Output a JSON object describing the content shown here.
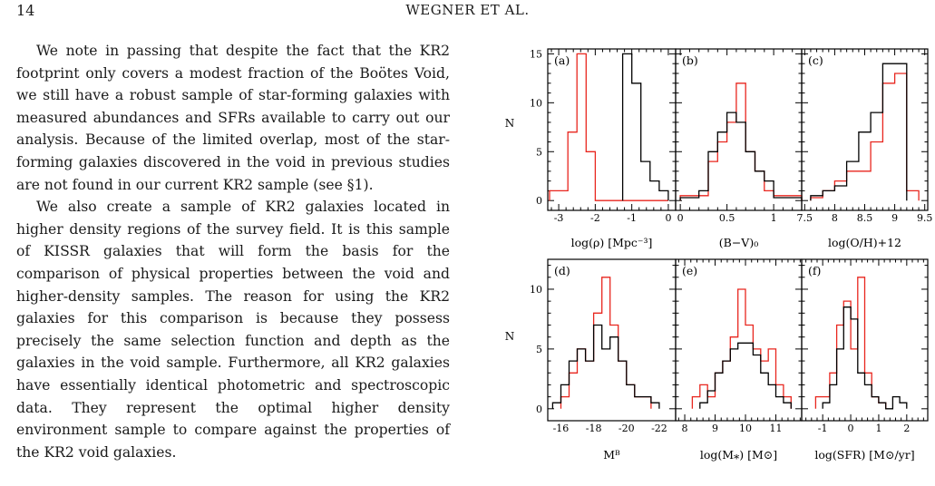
{
  "header": {
    "page_number": "14",
    "running_head": "WEGNER ET AL."
  },
  "body": {
    "paragraphs": [
      "We note in passing that despite the fact that the KR2 footprint only covers a modest fraction of the Boötes Void, we still have a robust sample of star-forming galaxies with measured abundances and SFRs available to carry out our analysis. Because of the limited overlap, most of the star-forming galaxies discovered in the void in previous studies are not found in our current KR2 sample (see §1).",
      "We also create a sample of KR2 galaxies located in higher density regions of the survey field. It is this sample of KISSR galaxies that will form the basis for the comparison of physical properties between the void and higher-density samples. The reason for using the KR2 galaxies for this comparison is because they possess precisely the same selection function and depth as the galaxies in the void sample. Furthermore, all KR2 galaxies have essentially identical photometric and spectroscopic data. They represent the optimal higher density environment sample to compare against the properties of the KR2 void galaxies."
    ]
  },
  "colors": {
    "void": "#e8261e",
    "higher_density": "#000000"
  },
  "chart_data": [
    {
      "type": "histogram",
      "panel": "(a)",
      "xlabel": "log(ρ) [Mpc⁻³]",
      "ylabel": "N",
      "xlim": [
        -3.3,
        0.2
      ],
      "ylim": [
        -1,
        15.5
      ],
      "xticks": [
        -3,
        -2,
        -1,
        0
      ],
      "xtick_labels": [
        "-3",
        "-2",
        "-1",
        "0"
      ],
      "yticks": [
        0,
        5,
        10,
        15
      ],
      "ytick_labels": [
        "0",
        "5",
        "10",
        "15"
      ],
      "series": [
        {
          "color": "red",
          "edges": [
            -3.25,
            -2.75,
            -2.5,
            -2.25,
            -2.0,
            -1.75,
            0.0
          ],
          "counts": [
            1,
            7,
            15,
            5,
            0,
            0
          ]
        },
        {
          "color": "black",
          "edges": [
            -1.25,
            -1.0,
            -0.75,
            -0.5,
            -0.25,
            0.0
          ],
          "counts": [
            15,
            12,
            4,
            2,
            1
          ]
        }
      ]
    },
    {
      "type": "histogram",
      "panel": "(b)",
      "xlabel": "(B−V)₀",
      "xlim": [
        -0.05,
        1.3
      ],
      "ylim": [
        -1,
        15.5
      ],
      "xticks": [
        0,
        0.5,
        1
      ],
      "xtick_labels": [
        "0",
        "0.5",
        "1"
      ],
      "series": [
        {
          "color": "red",
          "edges": [
            0.0,
            0.3,
            0.4,
            0.5,
            0.6,
            0.7,
            0.8,
            0.9,
            1.0,
            1.3
          ],
          "counts": [
            0.5,
            4,
            6,
            8,
            12,
            5,
            3,
            1,
            0.5
          ]
        },
        {
          "color": "black",
          "edges": [
            0.0,
            0.2,
            0.3,
            0.4,
            0.5,
            0.6,
            0.7,
            0.8,
            0.9,
            1.0,
            1.3
          ],
          "counts": [
            0.3,
            1,
            5,
            7,
            9,
            8,
            5,
            3,
            2,
            0.3
          ]
        }
      ]
    },
    {
      "type": "histogram",
      "panel": "(c)",
      "xlabel": "log(O/H)+12",
      "xlim": [
        7.45,
        9.55
      ],
      "ylim": [
        -1,
        15.5
      ],
      "xticks": [
        7.5,
        8,
        8.5,
        9,
        9.5
      ],
      "xtick_labels": [
        "7.5",
        "8",
        "8.5",
        "9",
        "9.5"
      ],
      "series": [
        {
          "color": "red",
          "edges": [
            7.6,
            7.8,
            8.0,
            8.2,
            8.4,
            8.6,
            8.8,
            9.0,
            9.2,
            9.4
          ],
          "counts": [
            0.3,
            1,
            2,
            3,
            3,
            6,
            12,
            13,
            1
          ]
        },
        {
          "color": "black",
          "edges": [
            7.6,
            7.8,
            8.0,
            8.2,
            8.4,
            8.6,
            8.8,
            9.0,
            9.2
          ],
          "counts": [
            0.5,
            1,
            1.5,
            4,
            7,
            9,
            14,
            14
          ]
        }
      ]
    },
    {
      "type": "histogram",
      "panel": "(d)",
      "xlabel": "Mᴮ",
      "ylabel": "N",
      "xlim": [
        -15.2,
        -23.0
      ],
      "ylim": [
        -1,
        12.5
      ],
      "xticks": [
        -16,
        -18,
        -20,
        -22
      ],
      "xtick_labels": [
        "-16",
        "-18",
        "-20",
        "-22"
      ],
      "yticks": [
        0,
        5,
        10
      ],
      "ytick_labels": [
        "0",
        "5",
        "10"
      ],
      "series": [
        {
          "color": "red",
          "edges": [
            -16.0,
            -16.5,
            -17.0,
            -17.5,
            -18.0,
            -18.5,
            -19.0,
            -19.5,
            -20.0,
            -20.5,
            -21.0,
            -21.5
          ],
          "counts": [
            1,
            3,
            5,
            4,
            8,
            11,
            7,
            4,
            2,
            1,
            1
          ]
        },
        {
          "color": "black",
          "edges": [
            -15.5,
            -16.0,
            -16.5,
            -17.0,
            -17.5,
            -18.0,
            -18.5,
            -19.0,
            -19.5,
            -20.0,
            -20.5,
            -21.0,
            -21.5,
            -22.0
          ],
          "counts": [
            0.5,
            2,
            4,
            5,
            4,
            7,
            5,
            6,
            4,
            2,
            1,
            1,
            0.5
          ]
        }
      ]
    },
    {
      "type": "histogram",
      "panel": "(e)",
      "xlabel": "log(M⁎) [M⊙]",
      "xlim": [
        7.7,
        11.85
      ],
      "ylim": [
        -1,
        12.5
      ],
      "xticks": [
        8,
        9,
        10,
        11
      ],
      "xtick_labels": [
        "8",
        "9",
        "10",
        "11"
      ],
      "series": [
        {
          "color": "red",
          "edges": [
            8.25,
            8.5,
            8.75,
            9.0,
            9.25,
            9.5,
            9.75,
            10.0,
            10.25,
            10.5,
            10.75,
            11.0,
            11.25,
            11.5
          ],
          "counts": [
            1,
            2,
            1,
            3,
            4,
            6,
            10,
            7,
            5,
            4,
            5,
            2,
            1
          ]
        },
        {
          "color": "black",
          "edges": [
            8.5,
            8.75,
            9.0,
            9.25,
            9.5,
            9.75,
            10.0,
            10.25,
            10.5,
            10.75,
            11.0,
            11.25,
            11.5
          ],
          "counts": [
            0.5,
            1.5,
            3,
            4,
            5,
            5.5,
            5.5,
            4.5,
            3,
            2,
            1,
            0.5
          ]
        }
      ]
    },
    {
      "type": "histogram",
      "panel": "(f)",
      "xlabel": "log(SFR) [M⊙/yr]",
      "xlim": [
        -1.75,
        2.75
      ],
      "ylim": [
        -1,
        12.5
      ],
      "xticks": [
        -1,
        0,
        1,
        2
      ],
      "xtick_labels": [
        "-1",
        "0",
        "1",
        "2"
      ],
      "series": [
        {
          "color": "red",
          "edges": [
            -1.25,
            -1.0,
            -0.75,
            -0.5,
            -0.25,
            0.0,
            0.25,
            0.5,
            0.75,
            1.0,
            1.25
          ],
          "counts": [
            1,
            1,
            3,
            7,
            9,
            5,
            11,
            3,
            1,
            0.5
          ]
        },
        {
          "color": "black",
          "edges": [
            -1.0,
            -0.75,
            -0.5,
            -0.25,
            0.0,
            0.25,
            0.5,
            0.75,
            1.0,
            1.25,
            1.5,
            1.75,
            2.0
          ],
          "counts": [
            0.5,
            2,
            5,
            8.5,
            7.5,
            3,
            2,
            1,
            0.5,
            0,
            1,
            0.5
          ]
        }
      ]
    }
  ]
}
